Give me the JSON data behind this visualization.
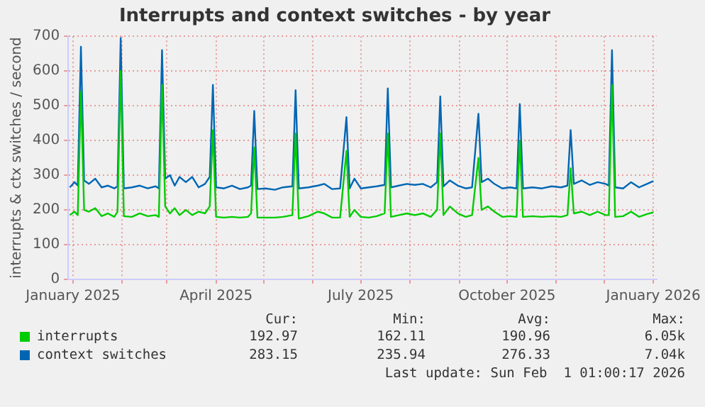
{
  "chart_data": {
    "type": "line",
    "title": "Interrupts and context switches - by year",
    "ylabel": "interrupts & ctx switches / second",
    "x": [
      "2024-12-30",
      "2025-01-02",
      "2025-01-04",
      "2025-01-06",
      "2025-01-08",
      "2025-01-11",
      "2025-01-15",
      "2025-01-19",
      "2025-01-23",
      "2025-01-27",
      "2025-01-29",
      "2025-01-31",
      "2025-02-02",
      "2025-02-07",
      "2025-02-12",
      "2025-02-17",
      "2025-02-22",
      "2025-02-24",
      "2025-02-26",
      "2025-02-28",
      "2025-03-03",
      "2025-03-06",
      "2025-03-09",
      "2025-03-13",
      "2025-03-17",
      "2025-03-21",
      "2025-03-25",
      "2025-03-28",
      "2025-03-30",
      "2025-04-01",
      "2025-04-06",
      "2025-04-11",
      "2025-04-16",
      "2025-04-21",
      "2025-04-23",
      "2025-04-25",
      "2025-04-27",
      "2025-05-02",
      "2025-05-08",
      "2025-05-13",
      "2025-05-19",
      "2025-05-21",
      "2025-05-23",
      "2025-05-29",
      "2025-06-04",
      "2025-06-08",
      "2025-06-13",
      "2025-06-18",
      "2025-06-22",
      "2025-06-24",
      "2025-06-27",
      "2025-07-01",
      "2025-07-06",
      "2025-07-11",
      "2025-07-16",
      "2025-07-18",
      "2025-07-20",
      "2025-07-25",
      "2025-07-30",
      "2025-08-04",
      "2025-08-09",
      "2025-08-14",
      "2025-08-18",
      "2025-08-20",
      "2025-08-22",
      "2025-08-26",
      "2025-08-31",
      "2025-09-05",
      "2025-09-09",
      "2025-09-13",
      "2025-09-15",
      "2025-09-19",
      "2025-09-23",
      "2025-09-28",
      "2025-10-03",
      "2025-10-07",
      "2025-10-09",
      "2025-10-11",
      "2025-10-17",
      "2025-10-23",
      "2025-10-29",
      "2025-11-04",
      "2025-11-08",
      "2025-11-10",
      "2025-11-12",
      "2025-11-17",
      "2025-11-22",
      "2025-11-27",
      "2025-12-02",
      "2025-12-04",
      "2025-12-06",
      "2025-12-08",
      "2025-12-13",
      "2025-12-18",
      "2025-12-23",
      "2025-12-28",
      "2026-01-01"
    ],
    "series": [
      {
        "name": "interrupts",
        "color": "#00cc00",
        "values": [
          185,
          195,
          185,
          540,
          200,
          195,
          205,
          182,
          190,
          180,
          195,
          600,
          182,
          180,
          190,
          182,
          185,
          180,
          560,
          210,
          190,
          205,
          185,
          200,
          185,
          195,
          190,
          210,
          430,
          180,
          178,
          180,
          178,
          180,
          190,
          380,
          178,
          178,
          178,
          180,
          185,
          420,
          175,
          182,
          195,
          190,
          178,
          178,
          370,
          180,
          200,
          180,
          178,
          182,
          190,
          420,
          180,
          185,
          190,
          185,
          190,
          180,
          200,
          420,
          185,
          210,
          190,
          180,
          185,
          350,
          200,
          210,
          195,
          180,
          182,
          180,
          400,
          180,
          182,
          180,
          182,
          180,
          185,
          320,
          190,
          195,
          185,
          195,
          185,
          185,
          560,
          180,
          182,
          195,
          180,
          188,
          193
        ]
      },
      {
        "name": "context switches",
        "color": "#0066b3",
        "values": [
          265,
          280,
          270,
          670,
          285,
          275,
          290,
          265,
          270,
          262,
          268,
          695,
          262,
          265,
          270,
          262,
          268,
          262,
          660,
          290,
          300,
          270,
          295,
          280,
          295,
          265,
          275,
          295,
          560,
          265,
          262,
          270,
          260,
          265,
          270,
          485,
          260,
          262,
          258,
          265,
          268,
          545,
          262,
          265,
          270,
          275,
          260,
          262,
          467,
          262,
          290,
          262,
          265,
          268,
          272,
          550,
          265,
          270,
          275,
          272,
          275,
          265,
          280,
          527,
          268,
          285,
          270,
          262,
          265,
          477,
          280,
          290,
          275,
          262,
          265,
          262,
          505,
          262,
          265,
          262,
          268,
          265,
          270,
          430,
          275,
          285,
          272,
          280,
          275,
          270,
          660,
          265,
          262,
          280,
          265,
          275,
          283
        ]
      }
    ],
    "xlim": [
      "2024-12-29",
      "2026-01-03"
    ],
    "xticks": [
      {
        "value": "2025-01",
        "label": "January 2025"
      },
      {
        "value": "2025-02",
        "label": null
      },
      {
        "value": "2025-03",
        "label": null
      },
      {
        "value": "2025-04",
        "label": "April 2025"
      },
      {
        "value": "2025-05",
        "label": null
      },
      {
        "value": "2025-06",
        "label": null
      },
      {
        "value": "2025-07",
        "label": "July 2025"
      },
      {
        "value": "2025-08",
        "label": null
      },
      {
        "value": "2025-09",
        "label": null
      },
      {
        "value": "2025-10",
        "label": "October 2025"
      },
      {
        "value": "2025-11",
        "label": null
      },
      {
        "value": "2025-12",
        "label": null
      },
      {
        "value": "2026-01",
        "label": "January 2026"
      }
    ],
    "ylim": [
      0,
      700
    ],
    "yticks": [
      0,
      100,
      200,
      300,
      400,
      500,
      600,
      700
    ],
    "grid": true,
    "legend": "bottom",
    "marker": "none",
    "line_style": "solid",
    "annotations": [
      "Cur:",
      "Min:",
      "Avg:",
      "Max:",
      "192.97",
      "162.11",
      "190.96",
      "6.05k",
      "283.15",
      "235.94",
      "276.33",
      "7.04k",
      "Last update: Sun Feb  1 01:00:17 2026"
    ]
  }
}
